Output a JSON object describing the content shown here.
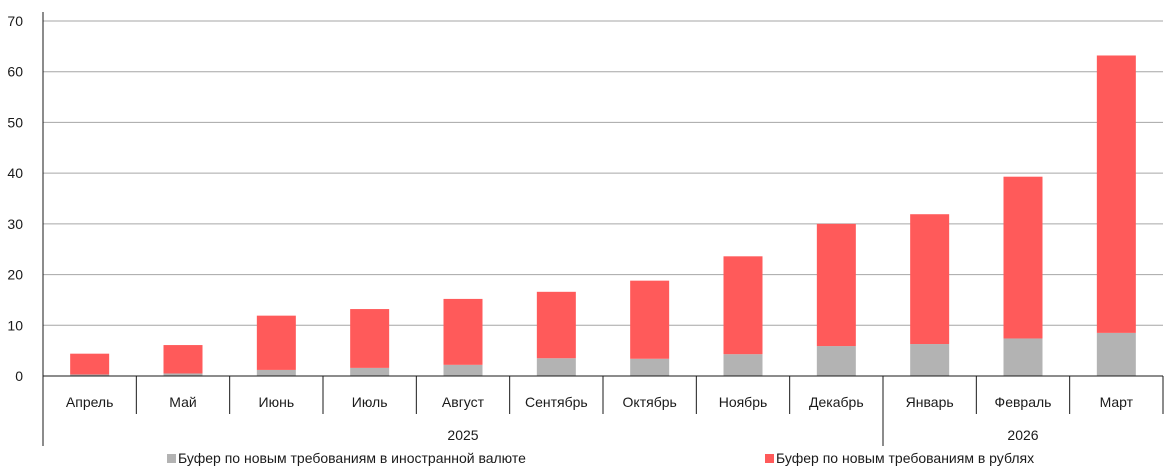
{
  "chart_data": {
    "type": "bar",
    "stacked": true,
    "ylim": [
      0,
      70
    ],
    "yticks": [
      0,
      10,
      20,
      30,
      40,
      50,
      60,
      70
    ],
    "grid": true,
    "categories": [
      "Апрель",
      "Май",
      "Июнь",
      "Июль",
      "Август",
      "Сентябрь",
      "Октябрь",
      "Ноябрь",
      "Декабрь",
      "Январь",
      "Февраль",
      "Март"
    ],
    "year_groups": [
      {
        "label": "2025",
        "count": 9
      },
      {
        "label": "2026",
        "count": 3
      }
    ],
    "series": [
      {
        "name": "Буфер по новым требованиям в иностранной валюте",
        "color": "#b3b3b3",
        "values": [
          0.3,
          0.5,
          1.2,
          1.6,
          2.2,
          3.5,
          3.4,
          4.3,
          5.9,
          6.3,
          7.4,
          8.5
        ]
      },
      {
        "name": "Буфер по новым требованиям в рублях",
        "color": "#ff5a5a",
        "values": [
          4.1,
          5.6,
          10.7,
          11.6,
          13.0,
          13.1,
          15.4,
          19.3,
          24.1,
          25.6,
          31.9,
          54.7
        ]
      }
    ],
    "legend_position": "bottom"
  }
}
